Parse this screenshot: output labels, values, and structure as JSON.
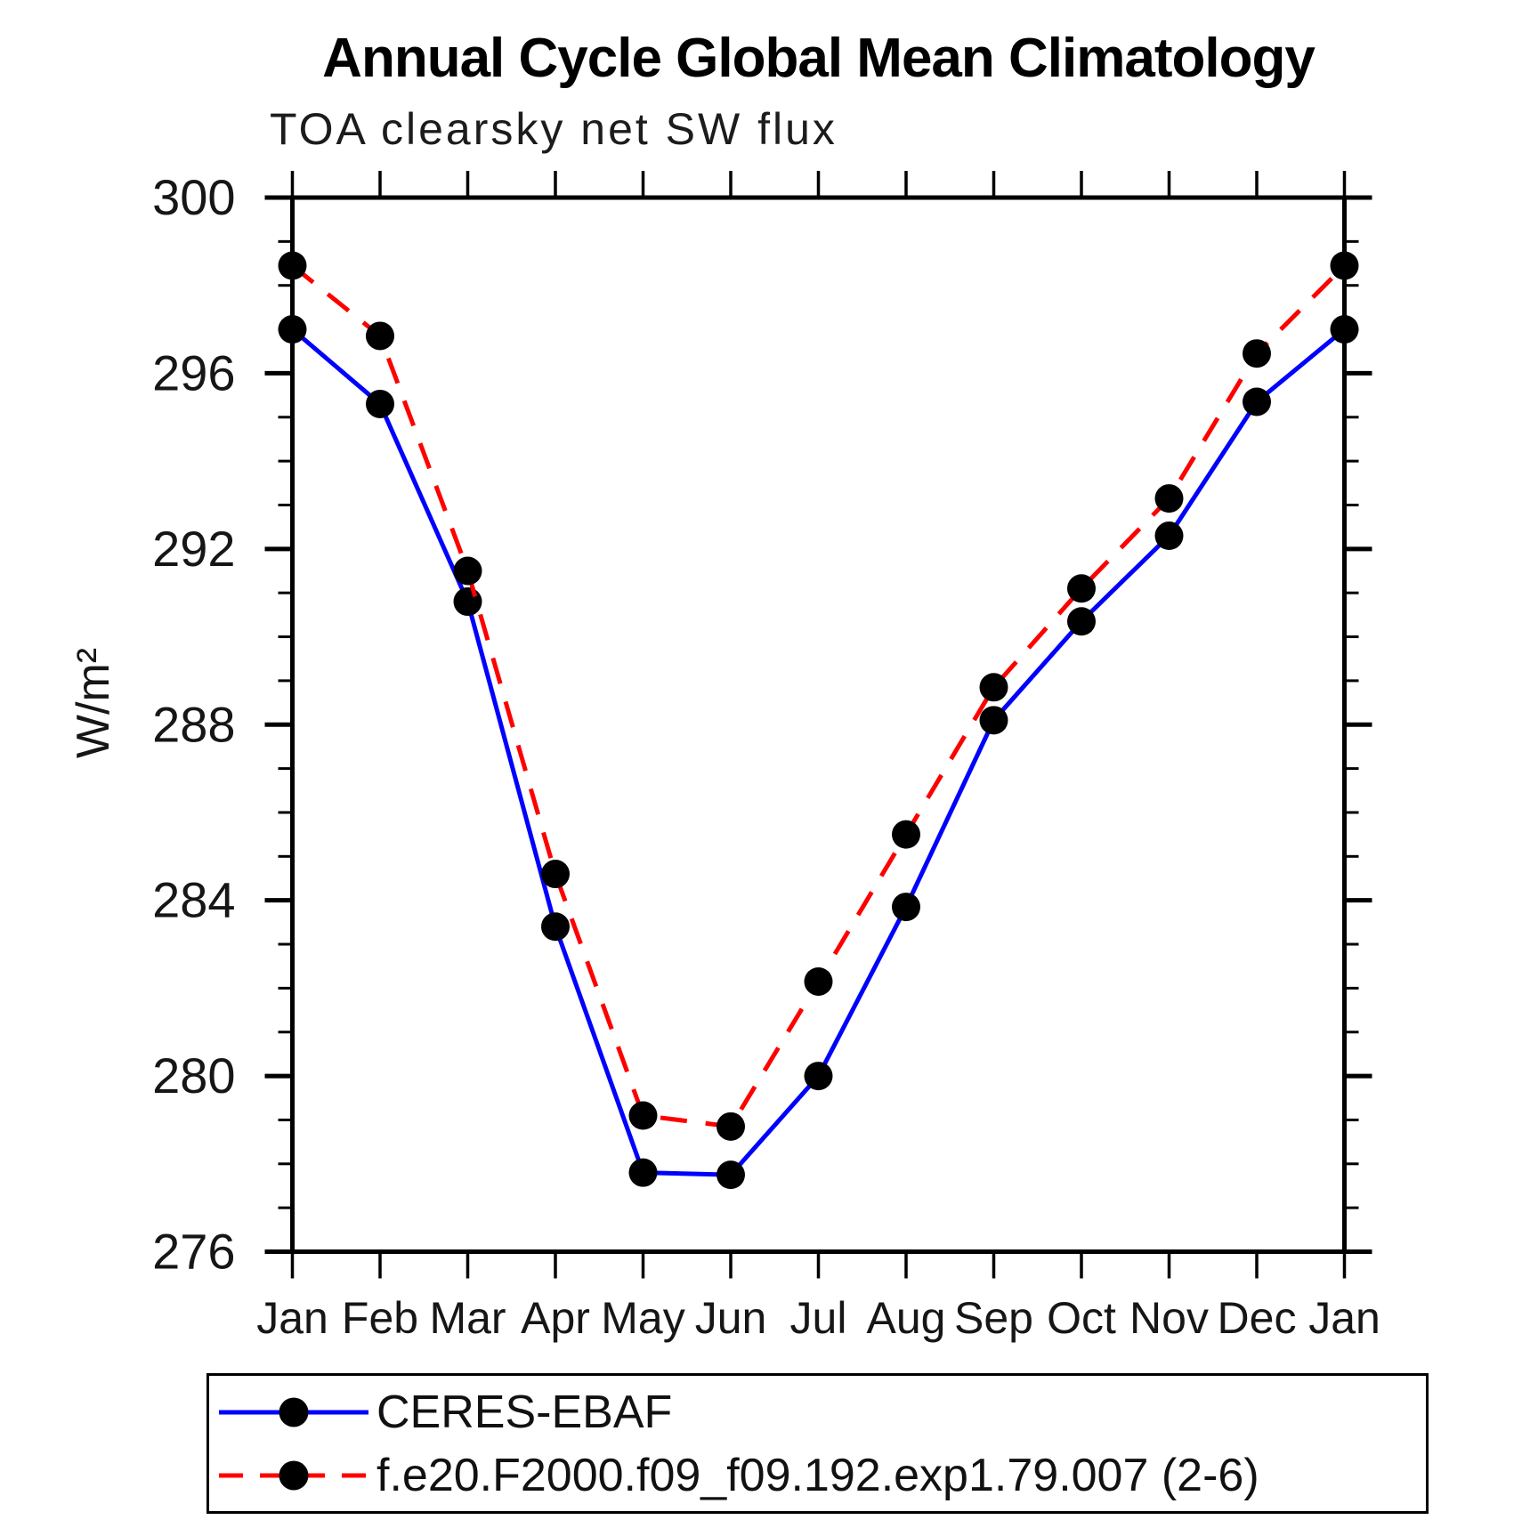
{
  "chart_data": {
    "type": "line",
    "title": "Annual Cycle Global Mean Climatology",
    "subtitle": "TOA clearsky net SW flux",
    "ylabel": "W/m²",
    "ylim": [
      276,
      300
    ],
    "y_major_ticks": [
      276,
      280,
      284,
      288,
      292,
      296,
      300
    ],
    "y_minor_step": 1,
    "x_labels": [
      "Jan",
      "Feb",
      "Mar",
      "Apr",
      "May",
      "Jun",
      "Jul",
      "Aug",
      "Sep",
      "Oct",
      "Nov",
      "Dec",
      "Jan"
    ],
    "grid": "off",
    "legend_position": "bottom-left",
    "marker_color": "#000000",
    "series": [
      {
        "name": "CERES-EBAF",
        "color": "#0000ff",
        "style": "solid",
        "marker": "circle",
        "values": [
          297.0,
          295.3,
          290.8,
          283.4,
          277.8,
          277.75,
          280.0,
          283.85,
          288.1,
          290.35,
          292.3,
          295.35,
          297.0
        ]
      },
      {
        "name": "f.e20.F2000.f09_f09.192.exp1.79.007 (2-6)",
        "color": "#ff0000",
        "style": "dashed",
        "marker": "circle",
        "values": [
          298.45,
          296.85,
          291.5,
          284.6,
          279.1,
          278.85,
          282.15,
          285.5,
          288.85,
          291.1,
          293.15,
          296.45,
          298.45
        ]
      }
    ]
  }
}
